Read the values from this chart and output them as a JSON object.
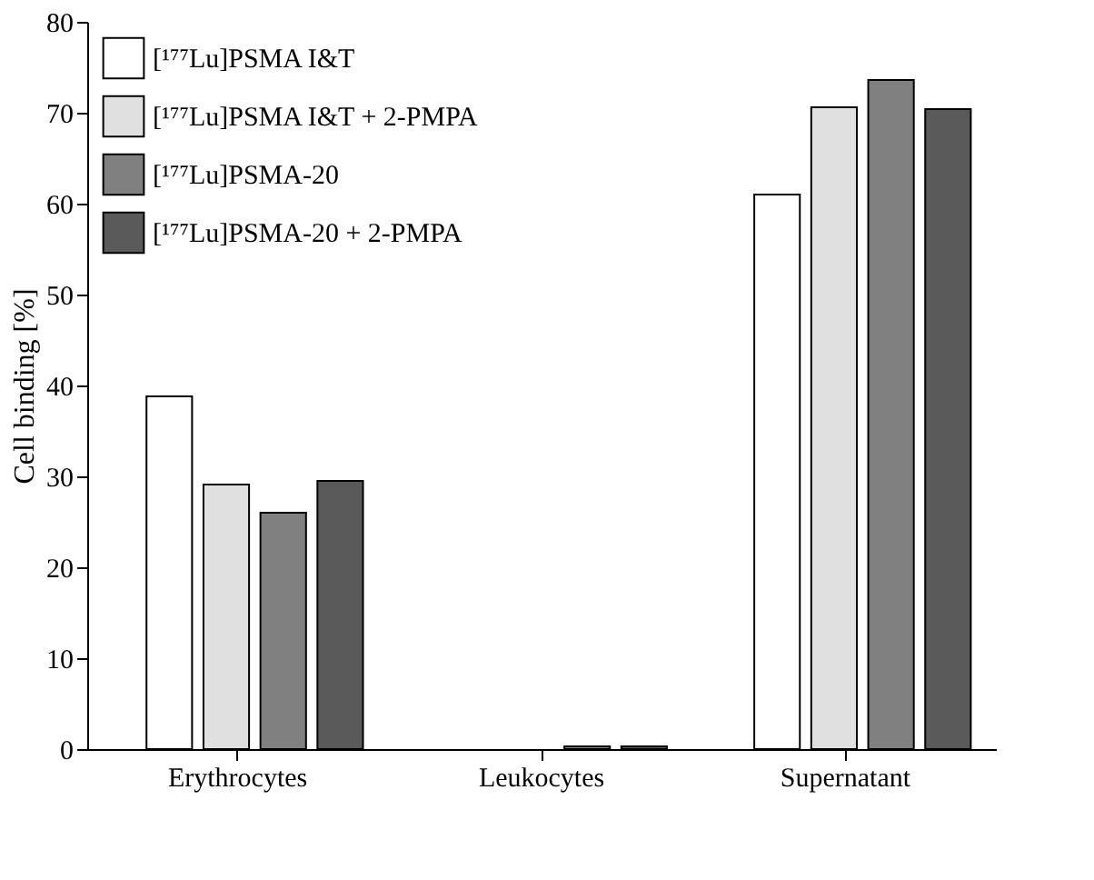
{
  "chart_data": {
    "type": "bar",
    "ylabel": "Cell binding [%]",
    "categories": [
      "Erythrocytes",
      "Leukocytes",
      "Supernatant"
    ],
    "series": [
      {
        "name": "[¹⁷⁷Lu]PSMA I&T",
        "color": "#ffffff",
        "values": [
          38.8,
          null,
          61.0
        ]
      },
      {
        "name": "[¹⁷⁷Lu]PSMA I&T + 2-PMPA",
        "color": "#e0e0e0",
        "values": [
          29.1,
          null,
          70.6
        ]
      },
      {
        "name": "[¹⁷⁷Lu]PSMA-20",
        "color": "#808080",
        "values": [
          26.0,
          0.3,
          73.6
        ]
      },
      {
        "name": "[¹⁷⁷Lu]PSMA-20 + 2-PMPA",
        "color": "#5a5a5a",
        "values": [
          29.5,
          0.3,
          70.4
        ]
      }
    ],
    "ylim": [
      0,
      80
    ],
    "yticks": [
      0,
      10,
      20,
      30,
      40,
      50,
      60,
      70,
      80
    ],
    "grid": false,
    "legend": "top left"
  }
}
